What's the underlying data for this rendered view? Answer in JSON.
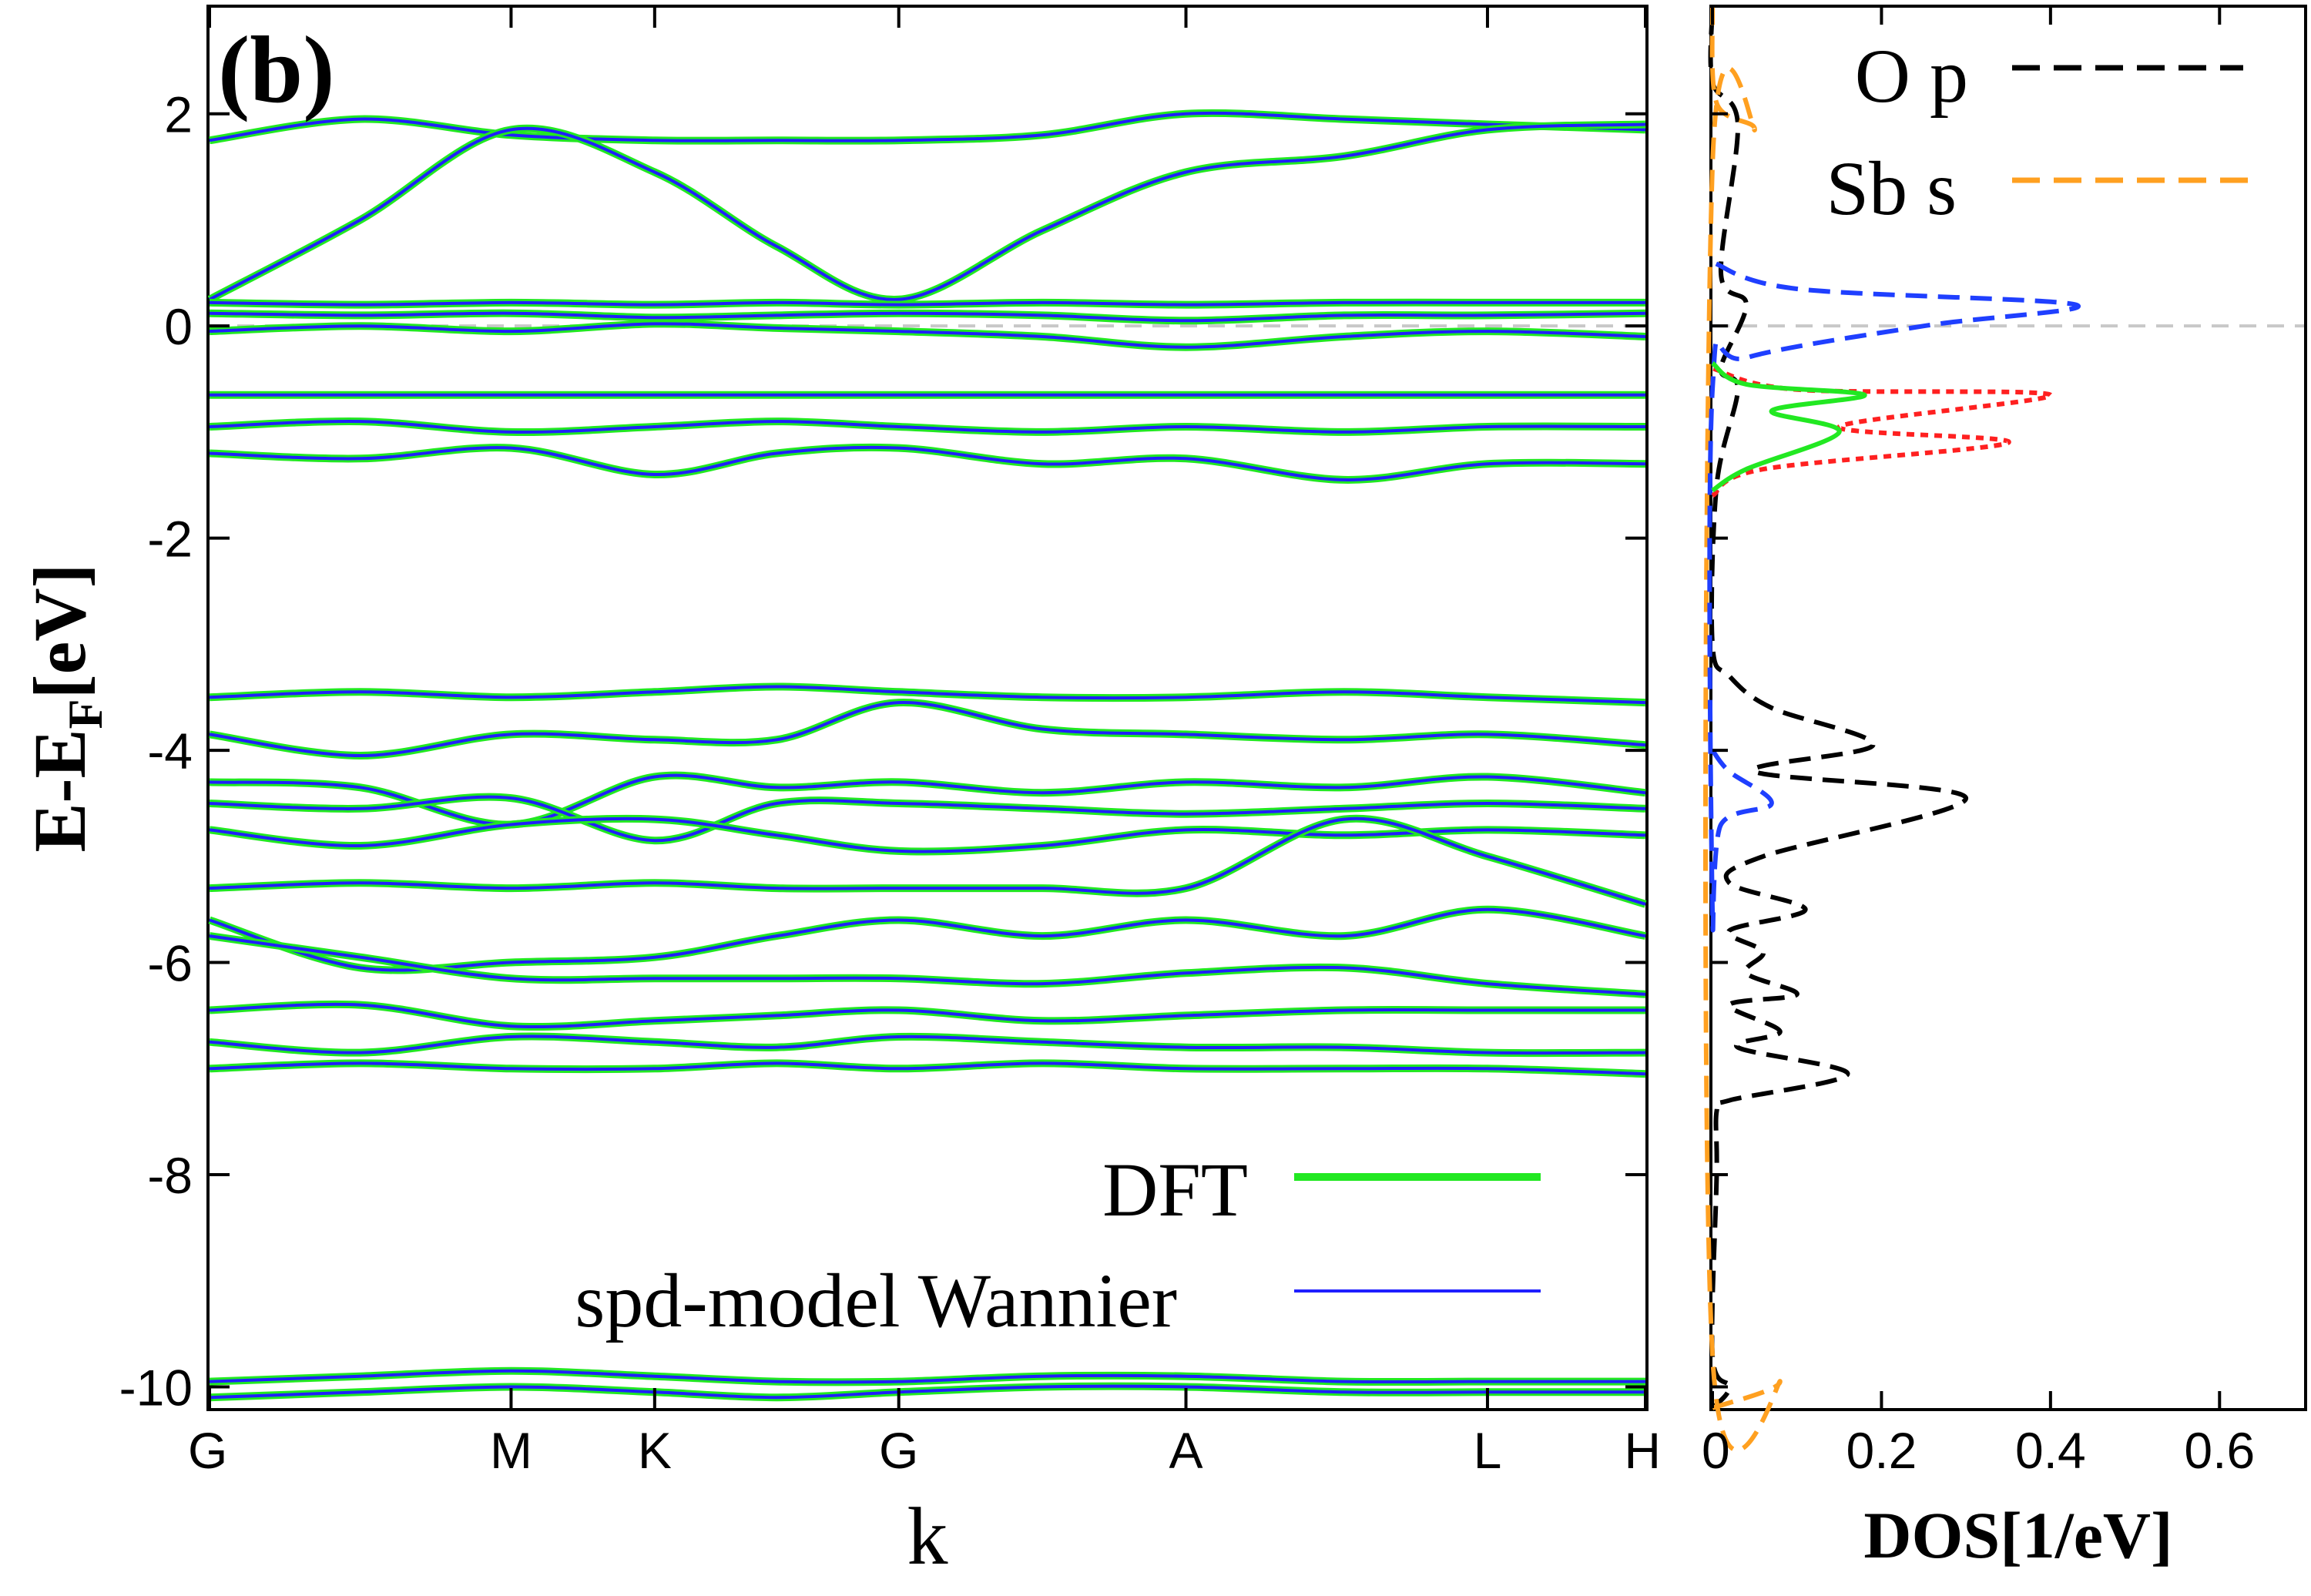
{
  "chart_data": [
    {
      "type": "line",
      "panel_label": "(b)",
      "xlabel": "k",
      "ylabel_main": "E-E",
      "ylabel_sub": "F",
      "ylabel_tail": "[eV]",
      "ylim": [
        -10.2,
        3.0
      ],
      "y_ticks": [
        2,
        0,
        -2,
        -4,
        -6,
        -8,
        -10
      ],
      "y_tick_labels": [
        "2",
        "0",
        "-2",
        "-4",
        "-6",
        "-8",
        "-10"
      ],
      "k_points": [
        {
          "label": "G",
          "pos": 0.0
        },
        {
          "label": "M",
          "pos": 0.21
        },
        {
          "label": "K",
          "pos": 0.31
        },
        {
          "label": "G",
          "pos": 0.48
        },
        {
          "label": "A",
          "pos": 0.68
        },
        {
          "label": "L",
          "pos": 0.89
        },
        {
          "label": "H",
          "pos": 1.0
        }
      ],
      "legend": [
        {
          "name": "DFT",
          "color": "#22e822"
        },
        {
          "name": "spd-model Wannier",
          "color": "#1f1fff"
        }
      ],
      "fermi_level": 0.0,
      "bands_sampled": {
        "k": [
          0.0,
          0.105,
          0.21,
          0.31,
          0.395,
          0.48,
          0.58,
          0.68,
          0.79,
          0.89,
          1.0
        ],
        "energies": [
          [
            1.75,
            1.95,
            1.8,
            1.75,
            1.75,
            1.75,
            1.8,
            2.0,
            1.95,
            1.9,
            1.85
          ],
          [
            0.25,
            1.0,
            1.85,
            1.45,
            0.75,
            0.25,
            0.9,
            1.45,
            1.6,
            1.85,
            1.9
          ],
          [
            0.22,
            0.2,
            0.22,
            0.2,
            0.22,
            0.2,
            0.22,
            0.2,
            0.22,
            0.22,
            0.22
          ],
          [
            0.12,
            0.1,
            0.12,
            0.08,
            0.1,
            0.12,
            0.1,
            0.05,
            0.1,
            0.1,
            0.12
          ],
          [
            -0.05,
            0.0,
            -0.05,
            0.02,
            -0.02,
            -0.05,
            -0.1,
            -0.2,
            -0.1,
            -0.05,
            -0.1
          ],
          [
            -0.65,
            -0.65,
            -0.65,
            -0.65,
            -0.65,
            -0.65,
            -0.65,
            -0.65,
            -0.65,
            -0.65,
            -0.65
          ],
          [
            -0.95,
            -0.9,
            -1.0,
            -0.95,
            -0.9,
            -0.95,
            -1.0,
            -0.95,
            -1.0,
            -0.95,
            -0.95
          ],
          [
            -1.2,
            -1.25,
            -1.15,
            -1.4,
            -1.2,
            -1.15,
            -1.3,
            -1.25,
            -1.45,
            -1.3,
            -1.3
          ],
          [
            -3.5,
            -3.45,
            -3.5,
            -3.45,
            -3.4,
            -3.45,
            -3.5,
            -3.5,
            -3.45,
            -3.5,
            -3.55
          ],
          [
            -3.85,
            -4.05,
            -3.85,
            -3.9,
            -3.9,
            -3.55,
            -3.8,
            -3.85,
            -3.9,
            -3.85,
            -3.95
          ],
          [
            -4.3,
            -4.35,
            -4.7,
            -4.25,
            -4.35,
            -4.3,
            -4.4,
            -4.3,
            -4.35,
            -4.25,
            -4.4
          ],
          [
            -4.5,
            -4.55,
            -4.45,
            -4.85,
            -4.5,
            -4.5,
            -4.55,
            -4.6,
            -4.55,
            -4.5,
            -4.55
          ],
          [
            -4.75,
            -4.9,
            -4.7,
            -4.65,
            -4.8,
            -4.95,
            -4.9,
            -4.75,
            -4.8,
            -4.75,
            -4.8
          ],
          [
            -5.3,
            -5.25,
            -5.3,
            -5.25,
            -5.3,
            -5.3,
            -5.3,
            -5.3,
            -4.65,
            -5.0,
            -5.45
          ],
          [
            -5.6,
            -6.05,
            -6.0,
            -5.95,
            -5.75,
            -5.6,
            -5.75,
            -5.6,
            -5.75,
            -5.5,
            -5.75
          ],
          [
            -5.75,
            -5.95,
            -6.15,
            -6.15,
            -6.15,
            -6.15,
            -6.2,
            -6.1,
            -6.05,
            -6.2,
            -6.3
          ],
          [
            -6.45,
            -6.4,
            -6.6,
            -6.55,
            -6.5,
            -6.45,
            -6.55,
            -6.5,
            -6.45,
            -6.45,
            -6.45
          ],
          [
            -6.75,
            -6.85,
            -6.7,
            -6.75,
            -6.8,
            -6.7,
            -6.75,
            -6.8,
            -6.8,
            -6.85,
            -6.85
          ],
          [
            -7.0,
            -6.95,
            -7.0,
            -7.0,
            -6.95,
            -7.0,
            -6.95,
            -7.0,
            -7.0,
            -7.0,
            -7.05
          ],
          [
            -9.95,
            -9.9,
            -9.85,
            -9.9,
            -9.95,
            -9.95,
            -9.9,
            -9.9,
            -9.95,
            -9.95,
            -9.95
          ],
          [
            -10.1,
            -10.05,
            -10.0,
            -10.05,
            -10.1,
            -10.05,
            -10.0,
            -10.0,
            -10.05,
            -10.05,
            -10.05
          ]
        ]
      }
    },
    {
      "type": "line",
      "orientation": "horizontal-dos",
      "xlabel": "DOS[1/eV]",
      "xlim": [
        0,
        0.7
      ],
      "x_ticks": [
        0,
        0.2,
        0.4,
        0.6
      ],
      "x_tick_labels": [
        "0",
        "0.2",
        "0.4",
        "0.6"
      ],
      "ylim": [
        -10.2,
        3.0
      ],
      "legend": [
        {
          "name": "O p",
          "color": "#000000"
        },
        {
          "name": "Sb s",
          "color": "#ffa020"
        }
      ],
      "series": [
        {
          "name": "O p",
          "color": "#000000",
          "style": "dashed",
          "points": [
            [
              0.0,
              -10.2
            ],
            [
              0.02,
              -10.0
            ],
            [
              0.0,
              -9.7
            ],
            [
              0.005,
              -8
            ],
            [
              0.005,
              -7.4
            ],
            [
              0.02,
              -7.3
            ],
            [
              0.16,
              -7.05
            ],
            [
              0.03,
              -6.8
            ],
            [
              0.08,
              -6.65
            ],
            [
              0.02,
              -6.4
            ],
            [
              0.1,
              -6.3
            ],
            [
              0.04,
              -6.1
            ],
            [
              0.06,
              -5.9
            ],
            [
              0.02,
              -5.7
            ],
            [
              0.11,
              -5.5
            ],
            [
              0.02,
              -5.25
            ],
            [
              0.06,
              -5.0
            ],
            [
              0.3,
              -4.45
            ],
            [
              0.05,
              -4.2
            ],
            [
              0.19,
              -3.95
            ],
            [
              0.07,
              -3.6
            ],
            [
              0.02,
              -3.3
            ],
            [
              0.0,
              -3.0
            ],
            [
              0.005,
              -1.5
            ],
            [
              0.03,
              -0.6
            ],
            [
              0.01,
              -0.4
            ],
            [
              0.04,
              0.2
            ],
            [
              0.01,
              0.5
            ],
            [
              0.03,
              1.9
            ],
            [
              0.0,
              2.3
            ],
            [
              0.0,
              3.0
            ]
          ]
        },
        {
          "name": "Sb s",
          "color": "#ffa020",
          "style": "dashed",
          "points": [
            [
              0.0,
              -10.2
            ],
            [
              0.08,
              -9.95
            ],
            [
              0.0,
              -9.7
            ],
            [
              0.0,
              1.5
            ],
            [
              0.05,
              1.85
            ],
            [
              0.005,
              2.1
            ],
            [
              0.0,
              3.0
            ]
          ]
        },
        {
          "name": "blue-dashed",
          "color": "#1f3fff",
          "style": "dashed",
          "points": [
            [
              0.0,
              -4.0
            ],
            [
              0.02,
              -4.2
            ],
            [
              0.07,
              -4.5
            ],
            [
              0.01,
              -4.7
            ],
            [
              0.0,
              -5.5
            ],
            [
              0.0,
              -0.6
            ],
            [
              0.04,
              -0.3
            ],
            [
              0.25,
              0.0
            ],
            [
              0.43,
              0.2
            ],
            [
              0.1,
              0.35
            ],
            [
              0.0,
              0.6
            ]
          ]
        },
        {
          "name": "red-dotted",
          "color": "#ff2020",
          "style": "dotted",
          "points": [
            [
              0.0,
              -1.6
            ],
            [
              0.06,
              -1.35
            ],
            [
              0.35,
              -1.1
            ],
            [
              0.15,
              -0.95
            ],
            [
              0.4,
              -0.65
            ],
            [
              0.1,
              -0.6
            ],
            [
              0.0,
              -0.4
            ]
          ]
        },
        {
          "name": "green-solid",
          "color": "#22e822",
          "style": "solid",
          "points": [
            [
              0.0,
              -1.55
            ],
            [
              0.04,
              -1.35
            ],
            [
              0.15,
              -1.0
            ],
            [
              0.07,
              -0.8
            ],
            [
              0.18,
              -0.65
            ],
            [
              0.04,
              -0.55
            ],
            [
              0.0,
              -0.35
            ]
          ]
        }
      ]
    }
  ]
}
